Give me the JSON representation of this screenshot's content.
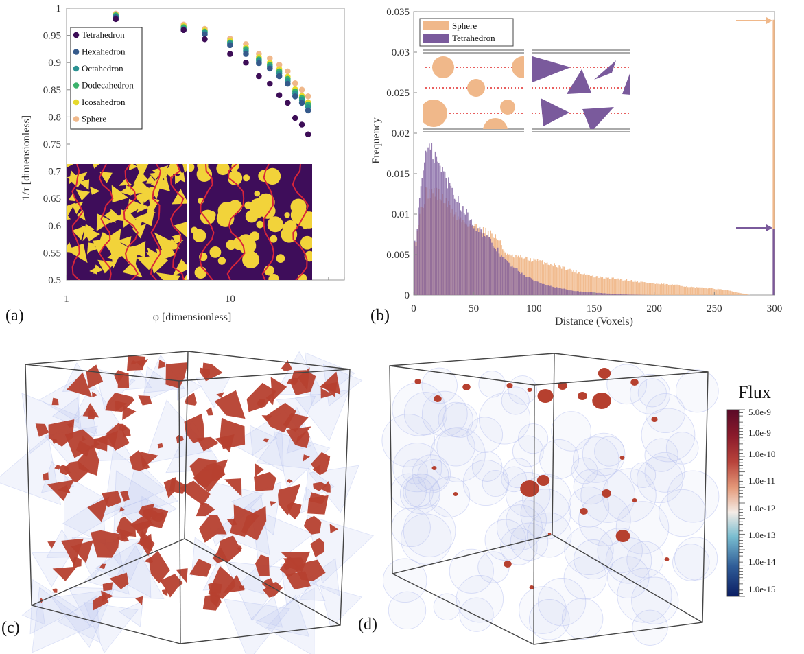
{
  "panel_labels": [
    "(a)",
    "(b)",
    "(c)",
    "(d)"
  ],
  "chart_data": [
    {
      "type": "scatter",
      "panel": "(a)",
      "xlabel": "φ [dimensionless]",
      "ylabel": "1/τ [dimensionless]",
      "xscale": "log",
      "xlim": [
        1,
        50
      ],
      "ylim": [
        0.5,
        1.0
      ],
      "xticks": [
        "1",
        "10"
      ],
      "yticks": [
        "0.5",
        "0.55",
        "0.6",
        "0.65",
        "0.7",
        "0.75",
        "0.8",
        "0.85",
        "0.9",
        "0.95",
        "1"
      ],
      "legend_position": "upper-left",
      "series": [
        {
          "name": "Tetrahedron",
          "color": "#3d0d57",
          "x": [
            2,
            5.2,
            7,
            10,
            12.5,
            15,
            17.5,
            20,
            22.5,
            25,
            27.5,
            30
          ],
          "y": [
            0.98,
            0.96,
            0.943,
            0.916,
            0.9,
            0.875,
            0.861,
            0.84,
            0.826,
            0.798,
            0.786,
            0.768
          ]
        },
        {
          "name": "Hexahedron",
          "color": "#355a8b",
          "x": [
            2,
            5.2,
            7,
            10,
            12.5,
            15,
            17.5,
            20,
            22.5,
            25,
            27.5,
            30
          ],
          "y": [
            0.983,
            0.96,
            0.952,
            0.932,
            0.916,
            0.899,
            0.889,
            0.875,
            0.861,
            0.838,
            0.826,
            0.812
          ]
        },
        {
          "name": "Octahedron",
          "color": "#2b9292",
          "x": [
            2,
            5.2,
            7,
            10,
            12.5,
            15,
            17.5,
            20,
            22.5,
            25,
            27.5,
            30
          ],
          "y": [
            0.985,
            0.962,
            0.955,
            0.935,
            0.921,
            0.903,
            0.893,
            0.88,
            0.866,
            0.843,
            0.831,
            0.818
          ]
        },
        {
          "name": "Dodecahedron",
          "color": "#3cb36c",
          "x": [
            2,
            5.2,
            7,
            10,
            12.5,
            15,
            17.5,
            20,
            22.5,
            25,
            27.5,
            30
          ],
          "y": [
            0.987,
            0.965,
            0.957,
            0.937,
            0.925,
            0.906,
            0.896,
            0.884,
            0.87,
            0.847,
            0.835,
            0.823
          ]
        },
        {
          "name": "Icosahedron",
          "color": "#e6d92c",
          "x": [
            2,
            5.2,
            7,
            10,
            12.5,
            15,
            17.5,
            20,
            22.5,
            25,
            27.5,
            30
          ],
          "y": [
            0.988,
            0.967,
            0.959,
            0.94,
            0.928,
            0.91,
            0.9,
            0.888,
            0.874,
            0.851,
            0.839,
            0.827
          ]
        },
        {
          "name": "Sphere",
          "color": "#f0b88a",
          "x": [
            2,
            5.2,
            7,
            10,
            12.5,
            15,
            17.5,
            20,
            22.5,
            25,
            27.5,
            30
          ],
          "y": [
            0.99,
            0.97,
            0.962,
            0.944,
            0.934,
            0.916,
            0.908,
            0.896,
            0.884,
            0.862,
            0.85,
            0.838
          ]
        }
      ]
    },
    {
      "type": "bar",
      "panel": "(b)",
      "xlabel": "Distance (Voxels)",
      "ylabel": "Frequency",
      "xlim": [
        0,
        300
      ],
      "ylim": [
        0,
        0.035
      ],
      "xticks": [
        "0",
        "50",
        "100",
        "150",
        "200",
        "250",
        "300"
      ],
      "yticks": [
        "0",
        "0.005",
        "0.01",
        "0.015",
        "0.02",
        "0.025",
        "0.03",
        "0.035"
      ],
      "legend_position": "upper-left",
      "series": [
        {
          "name": "Sphere",
          "color": "#f0b88a",
          "x": [
            2,
            5,
            10,
            15,
            20,
            25,
            30,
            35,
            40,
            45,
            50,
            55,
            60,
            65,
            70,
            75,
            80,
            90,
            100,
            110,
            120,
            130,
            140,
            150,
            160,
            170,
            180,
            190,
            200,
            210,
            220,
            230,
            240,
            250,
            260,
            270,
            280,
            300
          ],
          "y": [
            0.007,
            0.01,
            0.0125,
            0.0128,
            0.0125,
            0.0118,
            0.0108,
            0.0098,
            0.0092,
            0.0088,
            0.0085,
            0.0082,
            0.0079,
            0.0075,
            0.007,
            0.0055,
            0.0048,
            0.0046,
            0.0043,
            0.004,
            0.0036,
            0.0031,
            0.0027,
            0.0023,
            0.0021,
            0.002,
            0.0018,
            0.0016,
            0.0014,
            0.0013,
            0.0012,
            0.001,
            0.0009,
            0.0008,
            0.0006,
            0.0003,
            0.0,
            0.034
          ]
        },
        {
          "name": "Tetrahedron",
          "color": "#7a5a9c",
          "x": [
            2,
            5,
            8,
            10,
            12,
            15,
            18,
            20,
            25,
            30,
            35,
            40,
            45,
            50,
            55,
            60,
            65,
            70,
            75,
            80,
            85,
            90,
            95,
            100,
            110,
            120,
            130,
            140,
            150,
            160,
            170,
            180,
            190,
            200,
            210,
            300
          ],
          "y": [
            0.0065,
            0.012,
            0.016,
            0.0175,
            0.0178,
            0.0176,
            0.017,
            0.0163,
            0.015,
            0.0135,
            0.0122,
            0.011,
            0.0098,
            0.0088,
            0.008,
            0.0072,
            0.0064,
            0.0055,
            0.0045,
            0.0038,
            0.0032,
            0.0027,
            0.0022,
            0.0018,
            0.0013,
            0.0009,
            0.0006,
            0.0004,
            0.0003,
            0.0002,
            0.0001,
            5e-05,
            2e-05,
            0.0,
            0.0,
            0.0082
          ]
        }
      ]
    }
  ],
  "flux_colorbar": {
    "title": "Flux",
    "tick_labels": [
      "5.0e-9",
      "1.0e-9",
      "1.0e-10",
      "1.0e-11",
      "1.0e-12",
      "1.0e-13",
      "1.0e-14",
      "1.0e-15"
    ],
    "colors": [
      "#5a0a28",
      "#8b1a2b",
      "#b8433b",
      "#e59b7b",
      "#f4ece6",
      "#79bdd0",
      "#2f5c97",
      "#0b1d63"
    ]
  },
  "render_colors": {
    "particle_fill": "#f2d33a",
    "matrix": "#3e0d5a",
    "flow_line": "#d8253a",
    "flux_surface": "#b6402f",
    "glass": "#b9c3f0",
    "dotted_line": "#e02828"
  }
}
